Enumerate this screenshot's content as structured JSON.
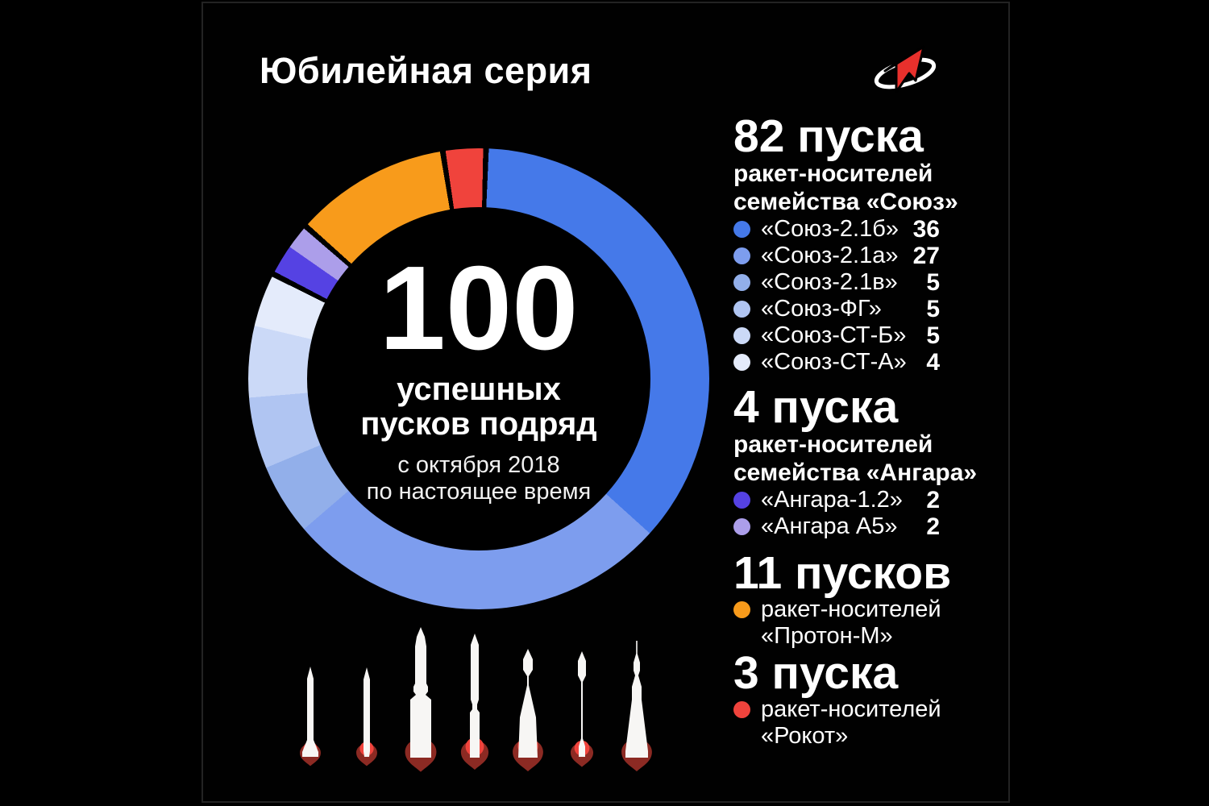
{
  "title": "Юбилейная серия",
  "logo": {
    "icon": "roscosmos-logo"
  },
  "donut_center": {
    "value": "100",
    "line1": "успешных",
    "line2": "пусков подряд",
    "sub1": "с октября 2018",
    "sub2": "по настоящее время"
  },
  "chart_data": {
    "type": "pie",
    "style": "donut",
    "title": "100 успешных пусков подряд",
    "subtitle": "с октября 2018 по настоящее время",
    "total": 100,
    "rotation_deg": 2.5,
    "gap_deg": 1.4,
    "legend_position": "right",
    "segments": [
      {
        "label": "Союз-2.1б",
        "value": 36,
        "color": "#4579E9"
      },
      {
        "label": "Союз-2.1а",
        "value": 27,
        "color": "#7D9DEE"
      },
      {
        "label": "Союз-2.1в",
        "value": 5,
        "color": "#92AFEA"
      },
      {
        "label": "Союз-ФГ",
        "value": 5,
        "color": "#B0C5F2"
      },
      {
        "label": "Союз-СТ-Б",
        "value": 5,
        "color": "#CBD9F7"
      },
      {
        "label": "Союз-СТ-А",
        "value": 4,
        "color": "#E4EBFB",
        "gap_after": true
      },
      {
        "label": "Ангара-1.2",
        "value": 2,
        "color": "#5542E3"
      },
      {
        "label": "Ангара А5",
        "value": 2,
        "color": "#AC9EEA",
        "gap_after": true
      },
      {
        "label": "Протон-М",
        "value": 11,
        "color": "#F89B1B",
        "gap_after": true
      },
      {
        "label": "Рокот",
        "value": 3,
        "color": "#F0433C",
        "gap_after": true
      }
    ]
  },
  "legend": {
    "sections": [
      {
        "heading": "82 пуска",
        "subheading_lines": [
          "ракет-носителей",
          "семейства «Союз»"
        ],
        "items": [
          {
            "label": "«Союз-2.1б»",
            "value": "36",
            "color": "#4579E9"
          },
          {
            "label": "«Союз-2.1а»",
            "value": "27",
            "color": "#7D9DEE"
          },
          {
            "label": "«Союз-2.1в»",
            "value": "5",
            "color": "#92AFEA"
          },
          {
            "label": "«Союз-ФГ»",
            "value": "5",
            "color": "#B0C5F2"
          },
          {
            "label": "«Союз-СТ-Б»",
            "value": "5",
            "color": "#CBD9F7"
          },
          {
            "label": "«Союз-СТ-А»",
            "value": "4",
            "color": "#E4EBFB"
          }
        ]
      },
      {
        "heading": "4 пуска",
        "subheading_lines": [
          "ракет-носителей",
          "семейства «Ангара»"
        ],
        "items": [
          {
            "label": "«Ангара-1.2»",
            "value": "2",
            "color": "#5542E3"
          },
          {
            "label": "«Ангара А5»",
            "value": "2",
            "color": "#AC9EEA"
          }
        ]
      },
      {
        "heading": "11 пусков",
        "bullet_color": "#F89B1B",
        "lines": [
          "ракет-носителей",
          "«Протон-М»"
        ]
      },
      {
        "heading": "3 пуска",
        "bullet_color": "#F0433C",
        "lines": [
          "ракет-носителей",
          "«Рокот»"
        ]
      }
    ]
  },
  "rockets": {
    "count": 7,
    "icons": [
      "rocket-silhouette-1",
      "rocket-silhouette-2",
      "rocket-silhouette-3",
      "rocket-silhouette-4",
      "rocket-silhouette-5",
      "rocket-silhouette-6",
      "rocket-silhouette-7"
    ],
    "body_color": "#F7F6F4",
    "flame_outer_color": "#8C2A23",
    "flame_inner_color": "#F0433C"
  }
}
